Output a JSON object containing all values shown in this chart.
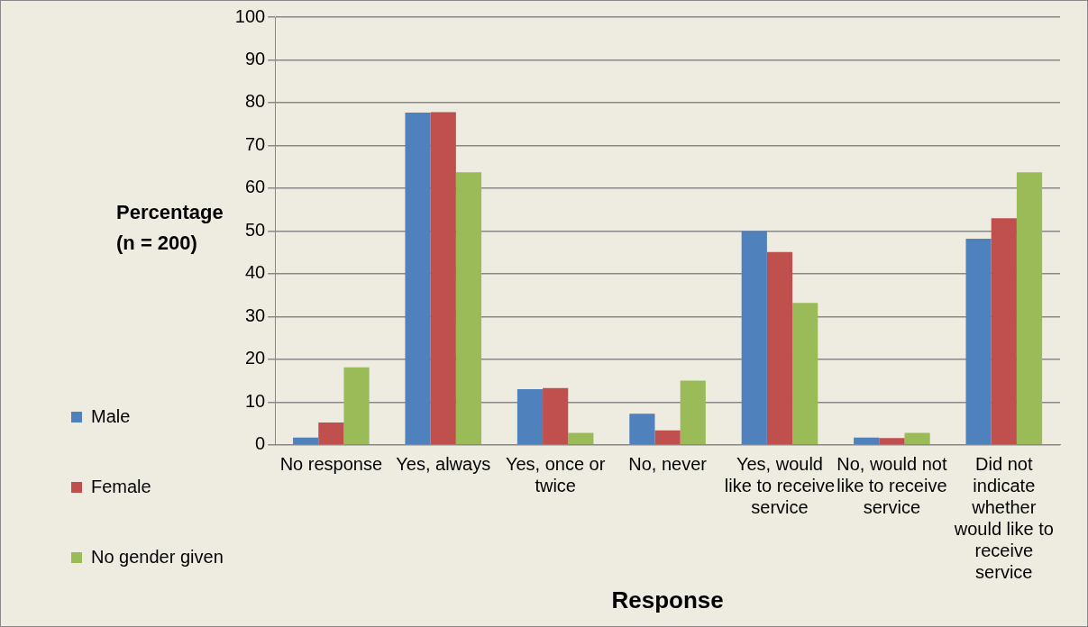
{
  "chart_data": {
    "type": "bar",
    "xlabel": "Response",
    "ylabel": "Percentage (n = 200)",
    "categories": [
      "No response",
      "Yes, always",
      "Yes, once or twice",
      "No, never",
      "Yes, would like to receive service",
      "No, would not like to receive service",
      "Did not indicate whether would like to receive service"
    ],
    "series": [
      {
        "name": "Male",
        "color": "#4f81bd",
        "values": [
          1.7,
          77.7,
          13,
          7.3,
          50,
          1.7,
          48.2
        ]
      },
      {
        "name": "Female",
        "color": "#c0504d",
        "values": [
          5.2,
          77.8,
          13.3,
          3.4,
          45.1,
          1.6,
          53
        ]
      },
      {
        "name": "No gender given",
        "color": "#9bbb59",
        "values": [
          18.1,
          63.7,
          2.8,
          15,
          33.2,
          2.8,
          63.7
        ]
      }
    ],
    "ylim": [
      0,
      100
    ],
    "yticks": [
      0,
      10,
      20,
      30,
      40,
      50,
      60,
      70,
      80,
      90,
      100
    ],
    "grid": "y",
    "legend": "bottom left"
  }
}
